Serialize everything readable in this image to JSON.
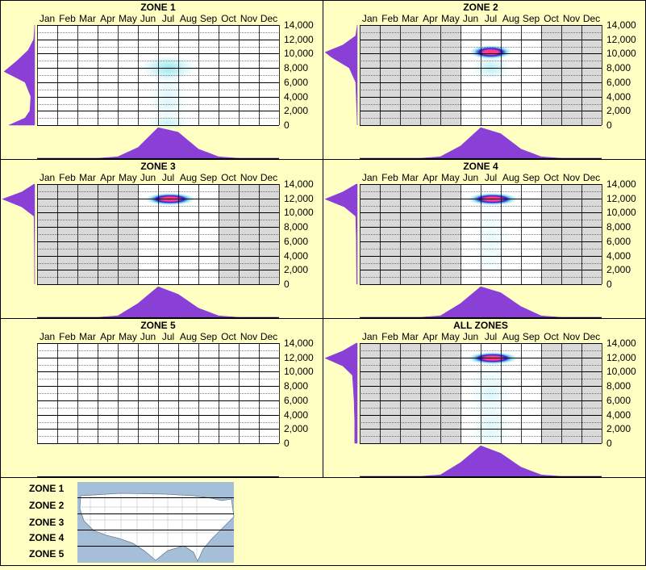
{
  "colors": {
    "background": "#ffffc4",
    "border": "#000000",
    "grid_bg_active": "#d9d9d9",
    "grid_bg_inactive": "#ffffff",
    "cell_line": "#000000",
    "density_fill": "#8a3fd6",
    "heat_low": "#7fe0ee",
    "heat_mid": "#2020e0",
    "heat_high": "#ff3a8c",
    "map_water": "#a6bfd8",
    "map_land": "#ffffff"
  },
  "shared_axes": {
    "months": [
      "Jan",
      "Feb",
      "Mar",
      "Apr",
      "May",
      "Jun",
      "Jul",
      "Aug",
      "Sep",
      "Oct",
      "Nov",
      "Dec"
    ],
    "yticks": [
      "14,000",
      "12,000",
      "10,000",
      "8,000",
      "6,000",
      "4,000",
      "2,000",
      "0"
    ],
    "ylim": [
      0,
      14000
    ]
  },
  "chart_data": [
    {
      "type": "heatmap",
      "title": "ZONE 1",
      "active_months": [],
      "hotspots": [
        {
          "month": 7.0,
          "elevation": 8000,
          "intensity": 0.35,
          "sx": 0.7,
          "sy": 900
        },
        {
          "month": 7.0,
          "elevation": 3500,
          "intensity": 0.12,
          "sx": 0.5,
          "sy": 2500
        },
        {
          "month": 7.0,
          "elevation": 300,
          "intensity": 0.15,
          "sx": 0.6,
          "sy": 500
        }
      ],
      "month_density": [
        0.0,
        0.0,
        0.0,
        0.0,
        0.05,
        0.35,
        1.0,
        0.85,
        0.3,
        0.05,
        0.0,
        0.0
      ],
      "elevation_density": [
        {
          "elevation": 0,
          "value": 0.8
        },
        {
          "elevation": 1000,
          "value": 0.3
        },
        {
          "elevation": 2000,
          "value": 0.15
        },
        {
          "elevation": 4000,
          "value": 0.12
        },
        {
          "elevation": 6000,
          "value": 0.3
        },
        {
          "elevation": 7500,
          "value": 0.95
        },
        {
          "elevation": 9000,
          "value": 0.55
        },
        {
          "elevation": 10500,
          "value": 0.2
        },
        {
          "elevation": 12000,
          "value": 0.03
        },
        {
          "elevation": 14000,
          "value": 0.0
        }
      ]
    },
    {
      "type": "heatmap",
      "title": "ZONE 2",
      "active_months": [
        6,
        7,
        8,
        9
      ],
      "hotspots": [
        {
          "month": 7.0,
          "elevation": 10200,
          "intensity": 1.0,
          "sx": 0.55,
          "sy": 500
        },
        {
          "month": 7.0,
          "elevation": 8000,
          "intensity": 0.25,
          "sx": 0.5,
          "sy": 800
        }
      ],
      "month_density": [
        0.0,
        0.0,
        0.0,
        0.0,
        0.05,
        0.4,
        1.0,
        0.8,
        0.3,
        0.05,
        0.0,
        0.0
      ],
      "elevation_density": [
        {
          "elevation": 0,
          "value": 0.0
        },
        {
          "elevation": 6000,
          "value": 0.05
        },
        {
          "elevation": 8000,
          "value": 0.25
        },
        {
          "elevation": 9500,
          "value": 0.8
        },
        {
          "elevation": 10200,
          "value": 1.0
        },
        {
          "elevation": 11200,
          "value": 0.45
        },
        {
          "elevation": 12500,
          "value": 0.05
        },
        {
          "elevation": 14000,
          "value": 0.0
        }
      ]
    },
    {
      "type": "heatmap",
      "title": "ZONE 3",
      "active_months": [
        6,
        7,
        8,
        9
      ],
      "hotspots": [
        {
          "month": 7.1,
          "elevation": 11900,
          "intensity": 1.0,
          "sx": 0.65,
          "sy": 450
        }
      ],
      "month_density": [
        0.0,
        0.0,
        0.0,
        0.0,
        0.05,
        0.45,
        1.0,
        0.75,
        0.3,
        0.05,
        0.0,
        0.0
      ],
      "elevation_density": [
        {
          "elevation": 0,
          "value": 0.0
        },
        {
          "elevation": 9500,
          "value": 0.02
        },
        {
          "elevation": 10800,
          "value": 0.4
        },
        {
          "elevation": 11900,
          "value": 1.0
        },
        {
          "elevation": 12900,
          "value": 0.4
        },
        {
          "elevation": 14000,
          "value": 0.02
        }
      ]
    },
    {
      "type": "heatmap",
      "title": "ZONE 4",
      "active_months": [
        6,
        7,
        8,
        9
      ],
      "hotspots": [
        {
          "month": 7.1,
          "elevation": 11900,
          "intensity": 1.0,
          "sx": 0.65,
          "sy": 450
        },
        {
          "month": 7.0,
          "elevation": 6000,
          "intensity": 0.08,
          "sx": 0.5,
          "sy": 3000
        }
      ],
      "month_density": [
        0.0,
        0.0,
        0.0,
        0.0,
        0.05,
        0.45,
        1.0,
        0.8,
        0.35,
        0.05,
        0.0,
        0.0
      ],
      "elevation_density": [
        {
          "elevation": 0,
          "value": 0.02
        },
        {
          "elevation": 6000,
          "value": 0.03
        },
        {
          "elevation": 9500,
          "value": 0.05
        },
        {
          "elevation": 10800,
          "value": 0.4
        },
        {
          "elevation": 11900,
          "value": 1.0
        },
        {
          "elevation": 12900,
          "value": 0.45
        },
        {
          "elevation": 14000,
          "value": 0.03
        }
      ]
    },
    {
      "type": "heatmap",
      "title": "ZONE 5",
      "active_months": [],
      "hotspots": [],
      "month_density": [
        0,
        0,
        0,
        0,
        0,
        0,
        0,
        0,
        0,
        0,
        0,
        0
      ],
      "elevation_density": []
    },
    {
      "type": "heatmap",
      "title": "ALL ZONES",
      "active_months": [
        6,
        7,
        8,
        9
      ],
      "hotspots": [
        {
          "month": 7.1,
          "elevation": 11900,
          "intensity": 1.0,
          "sx": 0.65,
          "sy": 450
        },
        {
          "month": 7.0,
          "elevation": 7000,
          "intensity": 0.12,
          "sx": 0.55,
          "sy": 2500
        },
        {
          "month": 7.0,
          "elevation": 2000,
          "intensity": 0.12,
          "sx": 0.55,
          "sy": 1500
        }
      ],
      "month_density": [
        0.0,
        0.0,
        0.0,
        0.0,
        0.05,
        0.45,
        1.0,
        0.75,
        0.3,
        0.05,
        0.0,
        0.0
      ],
      "elevation_density": [
        {
          "elevation": 0,
          "value": 0.08
        },
        {
          "elevation": 3000,
          "value": 0.08
        },
        {
          "elevation": 6000,
          "value": 0.1
        },
        {
          "elevation": 9500,
          "value": 0.15
        },
        {
          "elevation": 10800,
          "value": 0.45
        },
        {
          "elevation": 11900,
          "value": 1.0
        },
        {
          "elevation": 12900,
          "value": 0.45
        },
        {
          "elevation": 14000,
          "value": 0.03
        }
      ]
    }
  ],
  "legend": {
    "zones": [
      "ZONE 1",
      "ZONE 2",
      "ZONE 3",
      "ZONE 4",
      "ZONE 5"
    ]
  }
}
